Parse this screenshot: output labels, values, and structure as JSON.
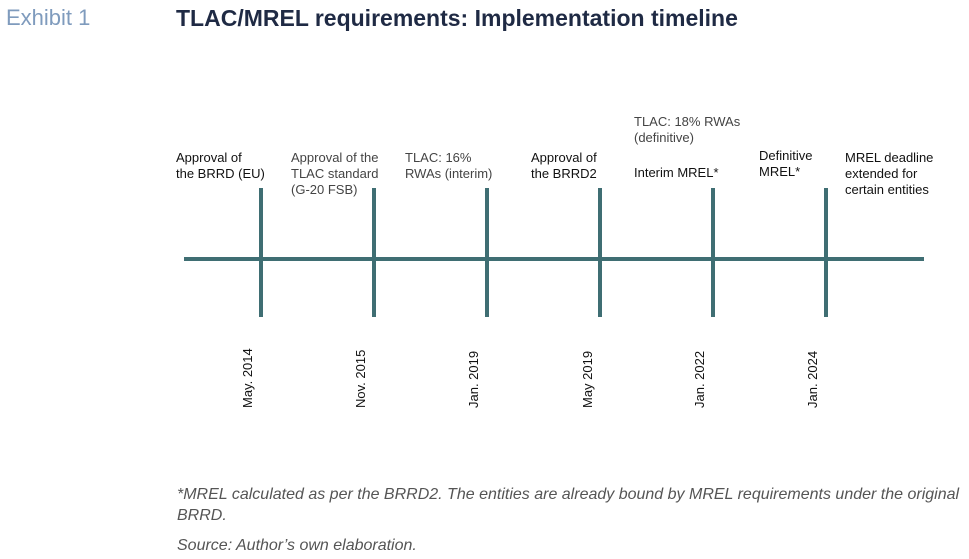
{
  "header": {
    "exhibit": "Exhibit 1",
    "title": "TLAC/MREL requirements: Implementation timeline"
  },
  "colors": {
    "timeline": "#3f6e73",
    "exhibit": "#7f9bbd",
    "title": "#1f2a44"
  },
  "milestones": [
    {
      "date": "May. 2014",
      "label": "Approval of\nthe BRRD (EU)"
    },
    {
      "date": "Nov. 2015",
      "label": "Approval of the\nTLAC standard\n(G-20 FSB)"
    },
    {
      "date": "Jan. 2019",
      "label": "TLAC: 16%\nRWAs (interim)"
    },
    {
      "date": "May 2019",
      "label": "Approval of\nthe BRRD2"
    },
    {
      "date": "Jan. 2022",
      "label_top": "TLAC: 18% RWAs\n(definitive)",
      "label": "Interim MREL*"
    },
    {
      "date": "Jan. 2024",
      "label": "Definitive\nMREL*"
    }
  ],
  "end_label": "MREL deadline\nextended for\ncertain entities",
  "footnote": "*MREL calculated as per the BRRD2. The entities are already bound by MREL requirements under the original BRRD.",
  "source": "Source: Author’s own elaboration."
}
